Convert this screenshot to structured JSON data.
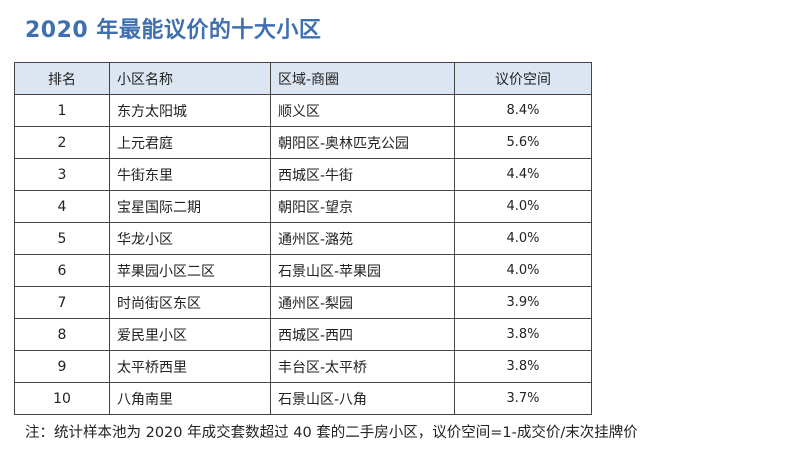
{
  "title": "2020 年最能议价的十大小区",
  "table": {
    "headers": [
      "排名",
      "小区名称",
      "区域-商圈",
      "议价空间"
    ],
    "rows": [
      [
        "1",
        "东方太阳城",
        "顺义区",
        "8.4%"
      ],
      [
        "2",
        "上元君庭",
        "朝阳区-奥林匹克公园",
        "5.6%"
      ],
      [
        "3",
        "牛街东里",
        "西城区-牛街",
        "4.4%"
      ],
      [
        "4",
        "宝星国际二期",
        "朝阳区-望京",
        "4.0%"
      ],
      [
        "5",
        "华龙小区",
        "通州区-潞苑",
        "4.0%"
      ],
      [
        "6",
        "苹果园小区二区",
        "石景山区-苹果园",
        "4.0%"
      ],
      [
        "7",
        "时尚街区东区",
        "通州区-梨园",
        "3.9%"
      ],
      [
        "8",
        "爱民里小区",
        "西城区-西四",
        "3.8%"
      ],
      [
        "9",
        "太平桥西里",
        "丰台区-太平桥",
        "3.8%"
      ],
      [
        "10",
        "八角南里",
        "石景山区-八角",
        "3.7%"
      ]
    ]
  },
  "note": "注：统计样本池为 2020 年成交套数超过 40 套的二手房小区，议价空间=1-成交价/末次挂牌价",
  "colors": {
    "title": "#3f6fb0",
    "header_background": "#dce6f2",
    "border": "#444444"
  }
}
